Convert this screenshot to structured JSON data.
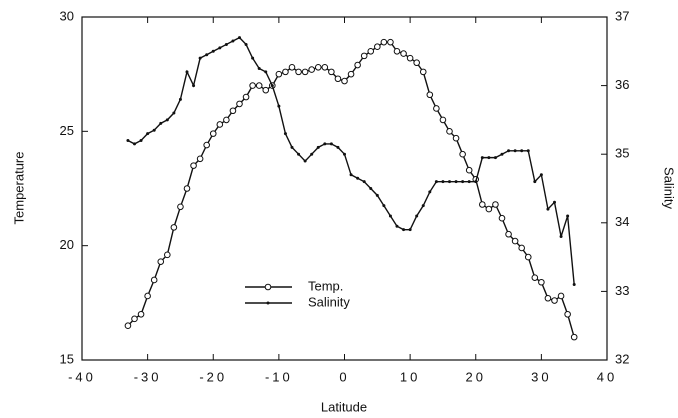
{
  "chart_data": {
    "type": "line",
    "x_label": "Latitude",
    "y_label": "Temperature",
    "y2_label": "Salinity",
    "xlim": [
      -40,
      40
    ],
    "xticks": [
      -40,
      -30,
      -20,
      -10,
      0,
      10,
      20,
      30,
      40
    ],
    "ylim": [
      15,
      30
    ],
    "yticks": [
      15,
      20,
      25,
      30
    ],
    "y2lim": [
      32,
      37
    ],
    "y2ticks": [
      32,
      33,
      34,
      35,
      36,
      37
    ],
    "legend": "center",
    "series": [
      {
        "name": "Temp.",
        "color": "#111111",
        "marker": "open-circle",
        "x": [
          -33,
          -32,
          -31,
          -30,
          -29,
          -28,
          -27,
          -26,
          -25,
          -24,
          -23,
          -22,
          -21,
          -20,
          -19,
          -18,
          -17,
          -16,
          -15,
          -14,
          -13,
          -12,
          -11,
          -10,
          -9,
          -8,
          -7,
          -6,
          -5,
          -4,
          -3,
          -2,
          -1,
          0,
          1,
          2,
          3,
          4,
          5,
          6,
          7,
          8,
          9,
          10,
          11,
          12,
          13,
          14,
          15,
          16,
          17,
          18,
          19,
          20,
          21,
          22,
          23,
          24,
          25,
          26,
          27,
          28,
          29,
          30,
          31,
          32,
          33,
          34,
          35
        ],
        "values": [
          16.5,
          16.8,
          17.0,
          17.8,
          18.5,
          19.3,
          19.6,
          20.8,
          21.7,
          22.5,
          23.5,
          23.8,
          24.4,
          24.9,
          25.3,
          25.5,
          25.9,
          26.2,
          26.5,
          27.0,
          27.0,
          26.8,
          27.0,
          27.5,
          27.6,
          27.8,
          27.6,
          27.6,
          27.7,
          27.8,
          27.8,
          27.6,
          27.3,
          27.2,
          27.5,
          27.9,
          28.3,
          28.5,
          28.7,
          28.9,
          28.9,
          28.5,
          28.4,
          28.2,
          28.0,
          27.6,
          26.6,
          26.0,
          25.5,
          25.0,
          24.7,
          24.0,
          23.3,
          22.9,
          21.8,
          21.6,
          21.8,
          21.2,
          20.5,
          20.2,
          19.9,
          19.5,
          18.6,
          18.4,
          17.7,
          17.6,
          17.8,
          17.0,
          16.0
        ]
      },
      {
        "name": "Salinity",
        "color": "#111111",
        "marker": "dot",
        "axis": "y2",
        "x": [
          -33,
          -32,
          -31,
          -30,
          -29,
          -28,
          -27,
          -26,
          -25,
          -24,
          -23,
          -22,
          -21,
          -20,
          -19,
          -18,
          -17,
          -16,
          -15,
          -14,
          -13,
          -12,
          -11,
          -10,
          -9,
          -8,
          -7,
          -6,
          -5,
          -4,
          -3,
          -2,
          -1,
          0,
          1,
          2,
          3,
          4,
          5,
          6,
          7,
          8,
          9,
          10,
          11,
          12,
          13,
          14,
          15,
          16,
          17,
          18,
          19,
          20,
          21,
          22,
          23,
          24,
          25,
          26,
          27,
          28,
          29,
          30,
          31,
          32,
          33,
          34,
          35
        ],
        "values": [
          35.2,
          35.15,
          35.2,
          35.3,
          35.35,
          35.45,
          35.5,
          35.6,
          35.8,
          36.2,
          36.0,
          36.4,
          36.45,
          36.5,
          36.55,
          36.6,
          36.65,
          36.7,
          36.6,
          36.4,
          36.25,
          36.2,
          36.0,
          35.7,
          35.3,
          35.1,
          35.0,
          34.9,
          35.0,
          35.1,
          35.15,
          35.15,
          35.1,
          35.0,
          34.7,
          34.65,
          34.6,
          34.5,
          34.4,
          34.25,
          34.1,
          33.95,
          33.9,
          33.9,
          34.1,
          34.25,
          34.45,
          34.6,
          34.6,
          34.6,
          34.6,
          34.6,
          34.6,
          34.6,
          34.95,
          34.95,
          34.95,
          35.0,
          35.05,
          35.05,
          35.05,
          35.05,
          34.6,
          34.7,
          34.2,
          34.3,
          33.8,
          34.1,
          33.1
        ]
      }
    ]
  }
}
